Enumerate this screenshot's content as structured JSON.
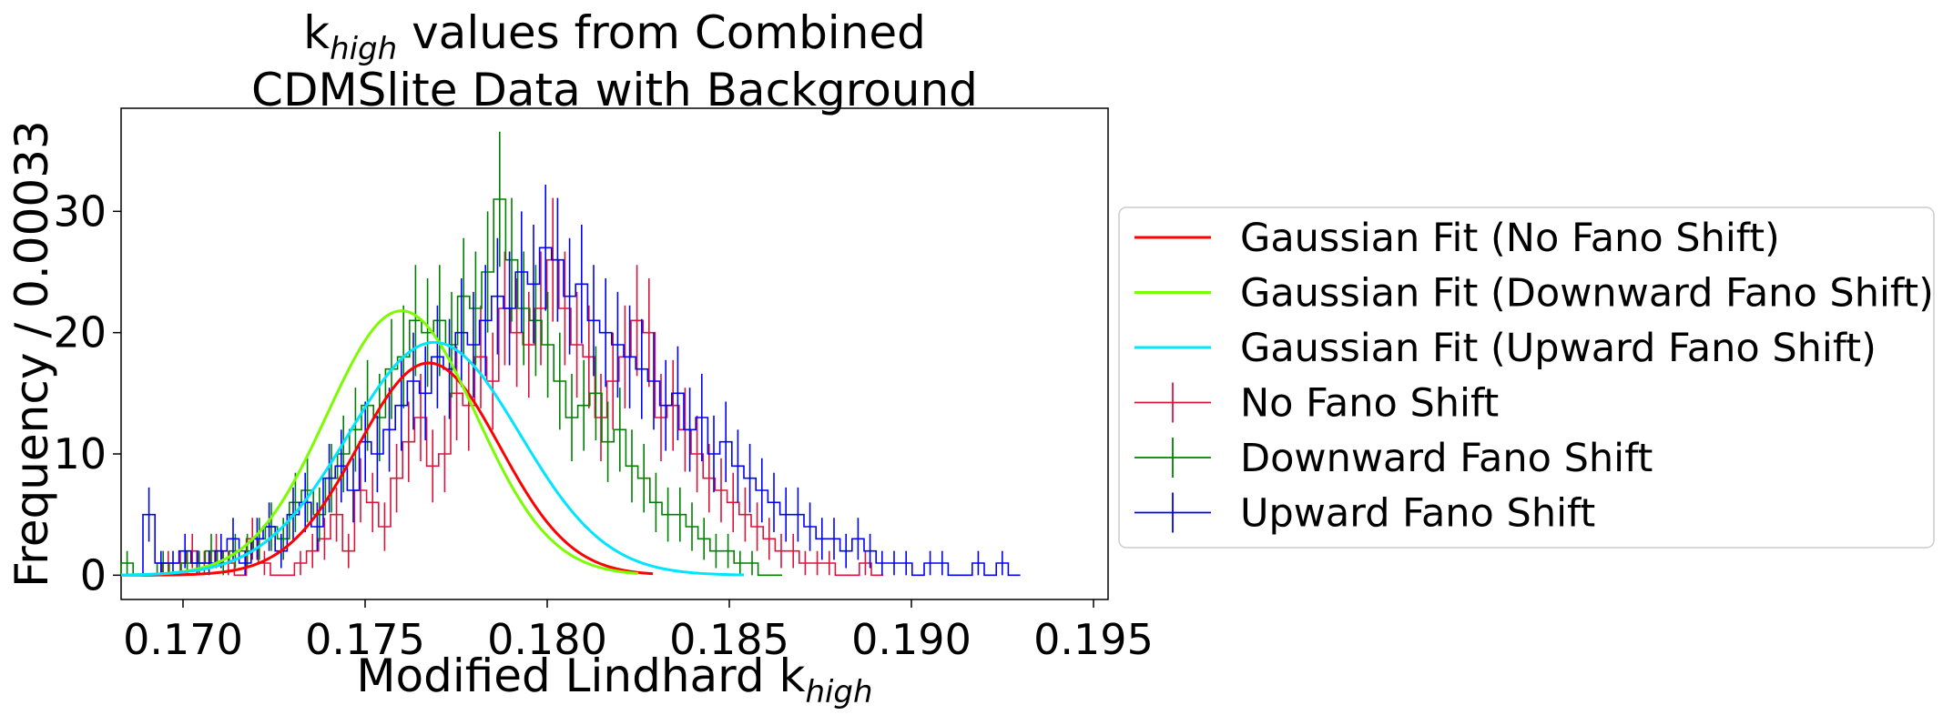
{
  "chart_data": {
    "type": "histogram",
    "title_lines": [
      {
        "main": "k",
        "sub": "high",
        "rest": " values from Combined"
      },
      {
        "main": "CDMSlite Data with Background",
        "sub": "",
        "rest": ""
      }
    ],
    "xlabel": {
      "main": "Modified Lindhard k",
      "sub": "high"
    },
    "ylabel": "Frequency / 0.00033",
    "xlim": [
      0.1683,
      0.1954
    ],
    "ylim": [
      -2,
      38.5
    ],
    "xticks": [
      0.17,
      0.175,
      0.18,
      0.185,
      0.19,
      0.195
    ],
    "xtick_labels": [
      "0.170",
      "0.175",
      "0.180",
      "0.185",
      "0.190",
      "0.195"
    ],
    "yticks": [
      0,
      10,
      20,
      30
    ],
    "ytick_labels": [
      "0",
      "10",
      "20",
      "30"
    ],
    "bin_width": 0.00033,
    "histograms": [
      {
        "name": "No Fano Shift",
        "color": "#dc143c",
        "x_start": 0.1691,
        "counts": [
          0,
          1,
          1,
          2,
          1,
          2,
          1,
          0,
          3,
          1,
          0,
          0,
          1,
          2,
          3,
          5,
          2,
          7,
          6,
          4,
          8,
          11,
          13,
          9,
          10,
          15,
          14,
          18,
          16,
          22,
          20,
          19,
          22,
          26,
          22,
          19,
          18,
          13,
          16,
          18,
          21,
          20,
          13,
          14,
          12,
          10,
          8,
          7,
          6,
          5,
          4,
          3,
          2,
          2,
          1,
          1,
          1,
          0,
          0,
          1,
          0
        ]
      },
      {
        "name": "Downward Fano Shift",
        "color": "#008000",
        "x_start": 0.1683,
        "counts": [
          1,
          0,
          0,
          1,
          0,
          1,
          1,
          2,
          1,
          2,
          2,
          3,
          4,
          3,
          6,
          7,
          5,
          8,
          10,
          12,
          14,
          13,
          17,
          18,
          21,
          20,
          21,
          19,
          23,
          22,
          25,
          31,
          26,
          22,
          21,
          19,
          16,
          13,
          14,
          15,
          11,
          12,
          9,
          8,
          6,
          5,
          5,
          4,
          3,
          2,
          2,
          1,
          1,
          0,
          0
        ]
      },
      {
        "name": "Upward Fano Shift",
        "color": "#0000ff",
        "x_start": 0.1689,
        "counts": [
          5,
          1,
          1,
          2,
          1,
          1,
          2,
          3,
          1,
          3,
          4,
          2,
          5,
          6,
          4,
          8,
          9,
          7,
          11,
          10,
          12,
          14,
          16,
          15,
          18,
          17,
          20,
          19,
          21,
          23,
          22,
          25,
          24,
          27,
          26,
          23,
          24,
          21,
          20,
          19,
          18,
          17,
          16,
          14,
          15,
          12,
          13,
          10,
          11,
          9,
          8,
          7,
          6,
          5,
          5,
          4,
          3,
          3,
          2,
          3,
          2,
          1,
          1,
          1,
          0,
          1,
          1,
          0,
          0,
          1,
          0,
          1,
          0
        ]
      }
    ],
    "fits": [
      {
        "name": "Gaussian Fit (No Fano Shift)",
        "color": "#ff0000",
        "amplitude": 17.5,
        "mean": 0.17675,
        "sigma": 0.00195,
        "x_range": [
          0.1683,
          0.1829
        ]
      },
      {
        "name": "Gaussian Fit (Downward Fano Shift)",
        "color": "#7cfc00",
        "amplitude": 21.8,
        "mean": 0.176,
        "sigma": 0.00205,
        "x_range": [
          0.1683,
          0.1825
        ]
      },
      {
        "name": "Gaussian Fit (Upward Fano Shift)",
        "color": "#00e5ff",
        "amplitude": 19.2,
        "mean": 0.1769,
        "sigma": 0.00235,
        "x_range": [
          0.1683,
          0.1854
        ]
      }
    ],
    "legend": {
      "placement": "right, outside plot",
      "entries": [
        {
          "label": "Gaussian Fit (No Fano Shift)",
          "color": "#ff0000",
          "kind": "line"
        },
        {
          "label": "Gaussian Fit (Downward Fano Shift)",
          "color": "#7cfc00",
          "kind": "line"
        },
        {
          "label": "Gaussian Fit (Upward Fano Shift)",
          "color": "#00e5ff",
          "kind": "line"
        },
        {
          "label": "No Fano Shift",
          "color": "#dc143c",
          "kind": "errorbar"
        },
        {
          "label": "Downward Fano Shift",
          "color": "#008000",
          "kind": "errorbar"
        },
        {
          "label": "Upward Fano Shift",
          "color": "#0000ff",
          "kind": "errorbar"
        }
      ]
    },
    "grid": false
  }
}
